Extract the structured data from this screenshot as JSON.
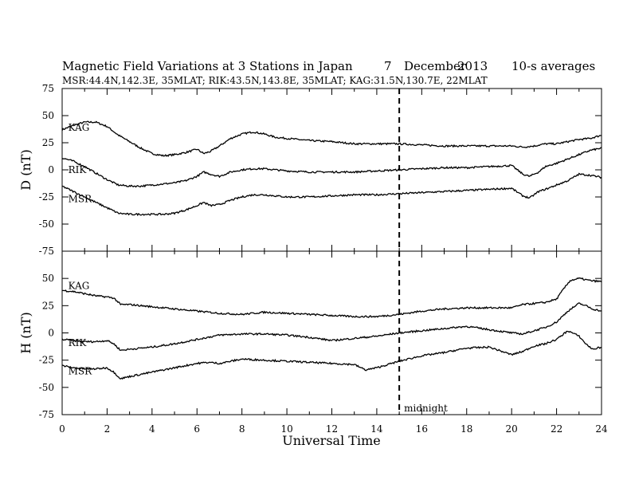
{
  "figure": {
    "title": "Magnetic Field Variations at 3 Stations in Japan",
    "date_day": "7",
    "date_month": "December",
    "date_year": "2013",
    "averaging": "10-s averages",
    "stations_line": "MSR:44.4N,142.3E, 35MLAT;  RIK:43.5N,143.8E, 35MLAT;  KAG:31.5N,130.7E, 22MLAT",
    "xlabel": "Universal Time",
    "midnight_label": "midnight"
  },
  "chart_data": [
    {
      "type": "line",
      "panel": "D",
      "ylabel": "D (nT)",
      "xlim": [
        0,
        24
      ],
      "ylim": [
        -75,
        75
      ],
      "xticks": [
        0,
        2,
        4,
        6,
        8,
        10,
        12,
        14,
        16,
        18,
        20,
        22,
        24
      ],
      "yticks": [
        -75,
        -50,
        -25,
        0,
        25,
        50,
        75
      ],
      "midnight_ut": 15,
      "series": [
        {
          "name": "KAG",
          "label_at": [
            0.2,
            39
          ],
          "x": [
            0,
            0.5,
            1.0,
            1.5,
            2.0,
            2.5,
            3.0,
            3.5,
            4.0,
            4.5,
            5.0,
            5.5,
            6.0,
            6.3,
            6.6,
            7.0,
            7.5,
            8.0,
            8.5,
            9.0,
            9.5,
            10,
            11,
            12,
            13,
            14,
            15,
            16,
            17,
            18,
            19,
            20,
            20.5,
            21,
            21.5,
            22,
            22.5,
            23,
            23.5,
            24
          ],
          "y": [
            37,
            41,
            44,
            44,
            40,
            32,
            26,
            20,
            15,
            13,
            14,
            16,
            19,
            15,
            17,
            22,
            29,
            33,
            35,
            33,
            30,
            29,
            27,
            26,
            24,
            24,
            24,
            23,
            22,
            22,
            22,
            22,
            21,
            22,
            24,
            24,
            26,
            28,
            29,
            32
          ]
        },
        {
          "name": "RIK",
          "label_at": [
            0.2,
            0
          ],
          "x": [
            0,
            0.5,
            1.0,
            1.5,
            2.0,
            2.5,
            3.0,
            3.5,
            4.0,
            4.5,
            5.0,
            5.5,
            6.0,
            6.3,
            6.6,
            7.0,
            7.5,
            8.0,
            8.5,
            9.0,
            9.5,
            10,
            11,
            12,
            13,
            14,
            15,
            16,
            17,
            18,
            19,
            20,
            20.5,
            20.8,
            21.2,
            21.5,
            22,
            22.5,
            23,
            23.5,
            24
          ],
          "y": [
            11,
            8,
            3,
            -3,
            -9,
            -14,
            -15,
            -15,
            -14,
            -13,
            -12,
            -10,
            -6,
            -2,
            -4,
            -6,
            -2,
            0,
            1,
            1,
            0,
            -1,
            -2,
            -2,
            -2,
            -1,
            0,
            1,
            2,
            2,
            3,
            4,
            -4,
            -6,
            -2,
            3,
            6,
            10,
            14,
            18,
            20
          ]
        },
        {
          "name": "MSR",
          "label_at": [
            0.2,
            -27
          ],
          "x": [
            0,
            0.5,
            1.0,
            1.5,
            2.0,
            2.5,
            3.0,
            3.5,
            4.0,
            4.5,
            5.0,
            5.5,
            6.0,
            6.3,
            6.6,
            7.0,
            7.5,
            8.0,
            8.5,
            9.0,
            9.5,
            10,
            11,
            12,
            13,
            14,
            15,
            16,
            17,
            18,
            19,
            20,
            20.5,
            20.8,
            21.2,
            21.5,
            22,
            22.5,
            23,
            23.5,
            24
          ],
          "y": [
            -15,
            -20,
            -25,
            -30,
            -35,
            -40,
            -41,
            -41,
            -41,
            -41,
            -40,
            -37,
            -33,
            -30,
            -33,
            -32,
            -28,
            -25,
            -23,
            -23,
            -24,
            -25,
            -25,
            -24,
            -23,
            -23,
            -22,
            -21,
            -20,
            -19,
            -18,
            -17,
            -24,
            -26,
            -20,
            -18,
            -14,
            -10,
            -4,
            -5,
            -7
          ]
        }
      ]
    },
    {
      "type": "line",
      "panel": "H",
      "ylabel": "H (nT)",
      "xlim": [
        0,
        24
      ],
      "ylim": [
        -75,
        75
      ],
      "xticks": [
        0,
        2,
        4,
        6,
        8,
        10,
        12,
        14,
        16,
        18,
        20,
        22,
        24
      ],
      "yticks": [
        -75,
        -50,
        -25,
        0,
        25,
        50,
        75
      ],
      "midnight_ut": 15,
      "series": [
        {
          "name": "KAG",
          "label_at": [
            0.2,
            43
          ],
          "x": [
            0,
            0.5,
            1.0,
            1.5,
            2.0,
            2.3,
            2.6,
            3.0,
            4.0,
            5.0,
            6.0,
            7.0,
            8.0,
            9.0,
            10,
            11,
            12,
            13,
            14,
            15,
            16,
            17,
            18,
            19,
            20,
            20.5,
            21,
            21.5,
            22,
            22.3,
            22.6,
            23,
            23.5,
            24
          ],
          "y": [
            39,
            38,
            36,
            34,
            33,
            32,
            26,
            26,
            24,
            22,
            20,
            18,
            17,
            19,
            18,
            17,
            16,
            15,
            15,
            17,
            20,
            22,
            23,
            23,
            23,
            26,
            27,
            28,
            31,
            40,
            48,
            50,
            48,
            47
          ]
        },
        {
          "name": "RIK",
          "label_at": [
            0.2,
            -9
          ],
          "x": [
            0,
            0.5,
            1.0,
            1.5,
            2.0,
            2.3,
            2.6,
            3.0,
            4.0,
            5.0,
            6.0,
            6.5,
            7.0,
            8.0,
            9.0,
            10,
            11,
            12,
            13,
            14,
            15,
            16,
            17,
            18,
            19,
            20,
            20.5,
            21,
            21.5,
            22,
            22.5,
            23,
            23.3,
            23.6,
            24
          ],
          "y": [
            -6,
            -7,
            -8,
            -8,
            -7,
            -10,
            -16,
            -15,
            -13,
            -10,
            -6,
            -4,
            -2,
            -1,
            -1,
            -2,
            -4,
            -7,
            -5,
            -3,
            0,
            2,
            4,
            6,
            3,
            0,
            -1,
            2,
            5,
            10,
            20,
            27,
            25,
            22,
            20
          ]
        },
        {
          "name": "MSR",
          "label_at": [
            0.2,
            -35
          ],
          "x": [
            0,
            0.5,
            1.0,
            1.5,
            2.0,
            2.3,
            2.6,
            3.0,
            4.0,
            5.0,
            6.0,
            6.5,
            7.0,
            8.0,
            9.0,
            10,
            11,
            12,
            13,
            13.5,
            14,
            15,
            16,
            17,
            18,
            19,
            20,
            20.5,
            21,
            21.5,
            22,
            22.5,
            23,
            23.3,
            23.6,
            24
          ],
          "y": [
            -30,
            -32,
            -33,
            -33,
            -32,
            -36,
            -42,
            -40,
            -36,
            -32,
            -28,
            -27,
            -28,
            -24,
            -25,
            -26,
            -27,
            -28,
            -29,
            -34,
            -32,
            -26,
            -21,
            -18,
            -14,
            -13,
            -20,
            -17,
            -12,
            -10,
            -6,
            2,
            -3,
            -10,
            -15,
            -13
          ]
        }
      ]
    }
  ]
}
